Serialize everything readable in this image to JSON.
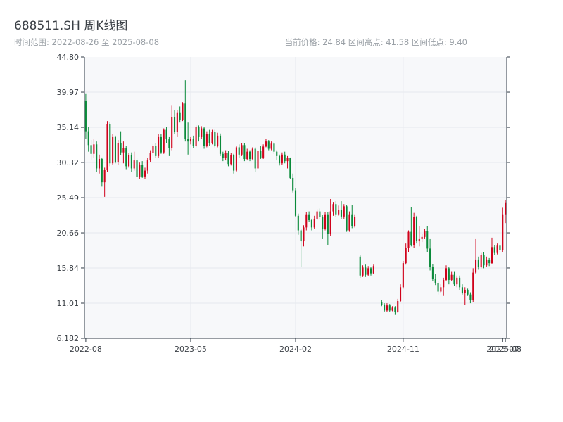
{
  "header": {
    "title": "688511.SH 周K线图",
    "range_text": "时间范围: 2022-08-26 至 2025-08-08",
    "stats_text": "当前价格: 24.84   区间高点: 41.58   区间低点: 9.40"
  },
  "colors": {
    "up": "#d0021b",
    "down": "#0a8a3a",
    "grid": "#e6e9ee",
    "plot_bg": "#f7f8fa",
    "axis": "#2f3a45"
  },
  "chart_data": {
    "type": "candlestick",
    "title": "688511.SH 周K线图",
    "xlabel": "",
    "ylabel": "",
    "ylim": [
      6.182,
      44.8
    ],
    "y_ticks": [
      "44.80",
      "39.97",
      "35.14",
      "30.32",
      "25.49",
      "20.66",
      "15.84",
      "11.01",
      "6.182"
    ],
    "x_tick_labels": [
      "2022-08",
      "2023-05",
      "2024-02",
      "2024-11",
      "2025-07",
      "2025-08"
    ],
    "x_tick_weeks": [
      0,
      39,
      78,
      118,
      155,
      156
    ],
    "grid": true,
    "total_weeks": 157,
    "candles": [
      [
        0,
        38.8,
        34.6,
        39.8,
        33.6
      ],
      [
        1,
        34.6,
        32.7,
        35.2,
        31.8
      ],
      [
        2,
        32.7,
        31.5,
        33.4,
        30.6
      ],
      [
        3,
        31.5,
        32.8,
        33.5,
        31.0
      ],
      [
        4,
        32.8,
        29.5,
        33.2,
        29.0
      ],
      [
        5,
        29.5,
        30.8,
        31.4,
        28.8
      ],
      [
        6,
        30.8,
        27.6,
        31.0,
        27.0
      ],
      [
        7,
        27.6,
        29.3,
        29.6,
        25.6
      ],
      [
        8,
        29.3,
        35.6,
        36.0,
        29.0
      ],
      [
        9,
        35.6,
        30.2,
        35.9,
        29.8
      ],
      [
        10,
        30.2,
        33.8,
        34.2,
        30.0
      ],
      [
        11,
        33.8,
        30.4,
        34.0,
        30.2
      ],
      [
        12,
        30.4,
        33.0,
        33.4,
        30.0
      ],
      [
        13,
        33.0,
        31.7,
        34.6,
        31.3
      ],
      [
        14,
        31.7,
        32.3,
        33.2,
        30.2
      ],
      [
        15,
        32.3,
        29.8,
        32.6,
        29.4
      ],
      [
        16,
        29.8,
        31.3,
        31.6,
        29.6
      ],
      [
        17,
        31.3,
        29.5,
        31.7,
        29.0
      ],
      [
        18,
        29.5,
        30.6,
        31.8,
        29.2
      ],
      [
        19,
        30.6,
        28.3,
        30.9,
        28.0
      ],
      [
        20,
        28.3,
        30.0,
        30.3,
        28.1
      ],
      [
        21,
        30.0,
        28.4,
        30.5,
        28.2
      ],
      [
        22,
        28.4,
        29.2,
        29.6,
        28.0
      ],
      [
        23,
        29.2,
        30.6,
        30.9,
        28.8
      ],
      [
        24,
        30.6,
        31.6,
        32.0,
        30.4
      ],
      [
        25,
        31.6,
        32.6,
        32.8,
        31.2
      ],
      [
        26,
        32.6,
        31.2,
        33.0,
        31.0
      ],
      [
        27,
        31.2,
        33.8,
        34.2,
        31.0
      ],
      [
        28,
        33.8,
        31.7,
        34.2,
        31.5
      ],
      [
        29,
        31.7,
        34.8,
        35.0,
        31.5
      ],
      [
        30,
        34.8,
        33.5,
        35.2,
        33.0
      ],
      [
        31,
        33.5,
        32.3,
        33.8,
        31.2
      ],
      [
        32,
        32.3,
        36.5,
        38.2,
        32.0
      ],
      [
        33,
        36.5,
        34.5,
        37.5,
        34.2
      ],
      [
        34,
        34.5,
        37.2,
        37.5,
        33.8
      ],
      [
        35,
        37.2,
        36.2,
        38.0,
        35.8
      ],
      [
        36,
        36.2,
        38.4,
        38.6,
        36.0
      ],
      [
        37,
        38.4,
        33.5,
        41.6,
        33.2
      ],
      [
        38,
        33.5,
        33.2,
        35.8,
        31.4
      ],
      [
        39,
        33.2,
        33.6,
        33.8,
        32.8
      ],
      [
        40,
        33.6,
        32.6,
        34.0,
        32.3
      ],
      [
        41,
        32.6,
        35.2,
        35.4,
        32.4
      ],
      [
        42,
        35.2,
        33.8,
        35.4,
        33.2
      ],
      [
        43,
        33.8,
        35.0,
        35.3,
        33.5
      ],
      [
        44,
        35.0,
        32.6,
        35.2,
        32.2
      ],
      [
        45,
        32.6,
        34.2,
        34.6,
        32.4
      ],
      [
        46,
        34.2,
        33.0,
        34.8,
        32.6
      ],
      [
        47,
        33.0,
        34.5,
        34.8,
        32.8
      ],
      [
        48,
        34.5,
        32.6,
        34.8,
        32.4
      ],
      [
        49,
        32.6,
        34.0,
        34.4,
        32.4
      ],
      [
        50,
        34.0,
        31.5,
        34.3,
        31.2
      ],
      [
        51,
        31.5,
        30.9,
        31.8,
        30.5
      ],
      [
        52,
        30.9,
        31.6,
        32.0,
        30.6
      ],
      [
        53,
        31.6,
        30.1,
        31.9,
        29.8
      ],
      [
        54,
        30.1,
        31.3,
        31.6,
        29.9
      ],
      [
        55,
        31.3,
        29.2,
        31.5,
        28.8
      ],
      [
        56,
        29.2,
        32.4,
        32.6,
        29.0
      ],
      [
        57,
        32.4,
        31.4,
        32.8,
        31.0
      ],
      [
        58,
        31.4,
        32.7,
        33.0,
        31.2
      ],
      [
        59,
        32.7,
        30.8,
        33.0,
        30.5
      ],
      [
        60,
        30.8,
        31.8,
        32.2,
        30.6
      ],
      [
        61,
        31.8,
        30.8,
        32.0,
        30.5
      ],
      [
        62,
        30.8,
        32.2,
        32.4,
        30.6
      ],
      [
        63,
        32.2,
        29.5,
        32.4,
        29.0
      ],
      [
        64,
        29.5,
        31.9,
        32.2,
        29.3
      ],
      [
        65,
        31.9,
        31.0,
        32.6,
        30.8
      ],
      [
        66,
        31.0,
        32.5,
        32.8,
        30.8
      ],
      [
        67,
        32.5,
        33.2,
        33.6,
        32.4
      ],
      [
        68,
        33.2,
        32.2,
        33.4,
        32.0
      ],
      [
        69,
        32.2,
        32.9,
        33.2,
        32.0
      ],
      [
        70,
        32.9,
        31.8,
        33.1,
        31.5
      ],
      [
        71,
        31.8,
        31.2,
        32.0,
        30.6
      ],
      [
        72,
        31.2,
        30.2,
        31.4,
        29.9
      ],
      [
        73,
        30.2,
        31.4,
        31.7,
        30.0
      ],
      [
        74,
        31.4,
        30.5,
        31.8,
        30.2
      ],
      [
        75,
        30.5,
        30.9,
        31.2,
        29.5
      ],
      [
        76,
        30.9,
        28.2,
        31.0,
        28.0
      ],
      [
        77,
        28.2,
        26.5,
        28.8,
        26.2
      ],
      [
        78,
        26.5,
        23.0,
        26.8,
        22.8
      ],
      [
        79,
        23.0,
        21.0,
        23.3,
        20.4
      ],
      [
        80,
        21.0,
        19.5,
        21.2,
        16.0
      ],
      [
        81,
        19.5,
        21.4,
        21.7,
        18.8
      ],
      [
        82,
        21.4,
        23.2,
        23.5,
        21.0
      ],
      [
        83,
        23.2,
        22.4,
        23.6,
        22.2
      ],
      [
        84,
        22.4,
        21.4,
        22.6,
        21.0
      ],
      [
        85,
        21.4,
        22.6,
        23.0,
        21.2
      ],
      [
        86,
        22.6,
        23.6,
        23.9,
        22.4
      ],
      [
        87,
        23.6,
        22.8,
        24.0,
        22.5
      ],
      [
        88,
        22.8,
        21.2,
        23.1,
        19.8
      ],
      [
        89,
        21.2,
        23.2,
        23.5,
        21.0
      ],
      [
        90,
        23.2,
        20.5,
        23.5,
        19.0
      ],
      [
        91,
        20.5,
        23.6,
        25.3,
        20.2
      ],
      [
        92,
        23.6,
        24.6,
        24.9,
        23.0
      ],
      [
        93,
        24.6,
        23.2,
        25.0,
        22.8
      ],
      [
        94,
        23.2,
        23.8,
        24.4,
        23.0
      ],
      [
        95,
        23.8,
        22.9,
        25.0,
        22.6
      ],
      [
        96,
        22.9,
        24.3,
        24.6,
        22.6
      ],
      [
        97,
        24.3,
        21.0,
        24.5,
        20.8
      ],
      [
        98,
        21.0,
        23.2,
        23.6,
        20.8
      ],
      [
        99,
        23.2,
        21.6,
        24.5,
        21.3
      ],
      [
        100,
        21.6,
        22.8,
        23.2,
        21.4
      ],
      [
        101,
        null,
        null,
        null,
        null
      ],
      [
        102,
        17.4,
        14.8,
        17.6,
        14.5
      ],
      [
        103,
        14.8,
        15.9,
        16.2,
        14.6
      ],
      [
        104,
        15.9,
        14.9,
        16.3,
        14.6
      ],
      [
        105,
        14.9,
        15.8,
        16.1,
        14.7
      ],
      [
        106,
        15.8,
        15.1,
        16.0,
        14.8
      ],
      [
        107,
        15.1,
        16.1,
        16.3,
        15.0
      ],
      [
        108,
        null,
        null,
        null,
        null
      ],
      [
        109,
        null,
        null,
        null,
        null
      ],
      [
        110,
        11.2,
        10.8,
        11.4,
        10.6
      ],
      [
        111,
        10.8,
        10.0,
        11.0,
        9.8
      ],
      [
        112,
        10.0,
        10.7,
        11.0,
        9.8
      ],
      [
        113,
        10.7,
        10.0,
        10.9,
        9.8
      ],
      [
        114,
        10.0,
        10.4,
        10.6,
        9.9
      ],
      [
        115,
        10.4,
        9.8,
        10.6,
        9.4
      ],
      [
        116,
        9.8,
        11.3,
        11.6,
        9.7
      ],
      [
        117,
        11.3,
        13.2,
        13.6,
        11.2
      ],
      [
        118,
        13.2,
        16.5,
        16.8,
        13.0
      ],
      [
        119,
        16.5,
        18.6,
        19.2,
        16.3
      ],
      [
        120,
        18.6,
        20.8,
        21.0,
        18.0
      ],
      [
        121,
        20.8,
        19.0,
        24.2,
        18.8
      ],
      [
        122,
        19.0,
        22.8,
        23.4,
        18.6
      ],
      [
        123,
        22.8,
        19.5,
        23.0,
        19.2
      ],
      [
        124,
        19.5,
        19.8,
        21.6,
        18.8
      ],
      [
        125,
        19.8,
        20.1,
        20.5,
        19.4
      ],
      [
        126,
        20.1,
        20.9,
        21.2,
        19.8
      ],
      [
        127,
        20.9,
        18.5,
        21.6,
        18.0
      ],
      [
        128,
        18.5,
        16.0,
        19.8,
        15.5
      ],
      [
        129,
        16.0,
        14.3,
        16.4,
        14.0
      ],
      [
        130,
        14.3,
        13.8,
        15.0,
        13.5
      ],
      [
        131,
        13.8,
        12.6,
        14.0,
        12.2
      ],
      [
        132,
        12.6,
        13.2,
        13.6,
        12.4
      ],
      [
        133,
        13.2,
        14.2,
        14.5,
        12.0
      ],
      [
        134,
        14.2,
        15.8,
        16.2,
        14.0
      ],
      [
        135,
        15.8,
        14.2,
        16.0,
        13.6
      ],
      [
        136,
        14.2,
        14.9,
        15.3,
        14.0
      ],
      [
        137,
        14.9,
        13.6,
        15.3,
        13.4
      ],
      [
        138,
        13.6,
        14.5,
        14.8,
        13.2
      ],
      [
        139,
        14.5,
        13.2,
        14.8,
        12.8
      ],
      [
        140,
        13.2,
        12.4,
        13.6,
        12.2
      ],
      [
        141,
        12.4,
        12.8,
        13.2,
        10.8
      ],
      [
        142,
        12.8,
        12.2,
        13.0,
        12.0
      ],
      [
        143,
        12.2,
        11.4,
        12.5,
        11.0
      ],
      [
        144,
        11.4,
        15.2,
        15.8,
        11.2
      ],
      [
        145,
        15.2,
        17.0,
        19.8,
        15.0
      ],
      [
        146,
        17.0,
        16.0,
        17.4,
        15.6
      ],
      [
        147,
        16.0,
        17.6,
        17.9,
        15.8
      ],
      [
        148,
        17.6,
        16.2,
        18.0,
        15.8
      ],
      [
        149,
        16.2,
        17.0,
        17.4,
        16.0
      ],
      [
        150,
        17.0,
        16.5,
        17.2,
        16.1
      ],
      [
        151,
        16.5,
        18.7,
        20.0,
        16.4
      ],
      [
        152,
        18.7,
        17.9,
        19.0,
        17.6
      ],
      [
        153,
        17.9,
        18.9,
        19.2,
        17.7
      ],
      [
        154,
        18.9,
        18.3,
        19.1,
        18.0
      ],
      [
        155,
        18.3,
        23.2,
        24.1,
        18.0
      ],
      [
        156,
        23.2,
        24.84,
        25.2,
        22.0
      ]
    ]
  }
}
